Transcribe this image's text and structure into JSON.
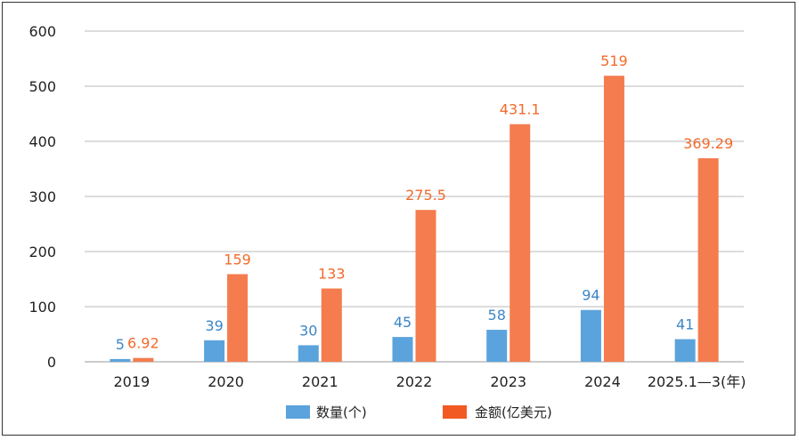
{
  "chart_data": {
    "type": "bar",
    "categories": [
      "2019",
      "2020",
      "2021",
      "2022",
      "2023",
      "2024",
      "2025.1—3(年)"
    ],
    "series": [
      {
        "name": "数量(个)",
        "values": [
          5,
          39,
          30,
          45,
          58,
          94,
          41
        ],
        "labels": [
          "5",
          "39",
          "30",
          "45",
          "58",
          "94",
          "41"
        ],
        "color": "#5ba3dc",
        "legend_color": "#5ba3dc",
        "label_color": "#3d86c6"
      },
      {
        "name": "金额(亿美元)",
        "values": [
          6.92,
          159,
          133,
          275.5,
          431.1,
          519,
          369.29
        ],
        "labels": [
          "6.92",
          "159",
          "133",
          "275.5",
          "431.1",
          "519",
          "369.29"
        ],
        "color": "#f47c4e",
        "legend_color": "#f25a23",
        "label_color": "#f26a2b"
      }
    ],
    "yticks": [
      "0",
      "100",
      "200",
      "300",
      "400",
      "500",
      "600"
    ],
    "ylim": [
      0,
      600
    ],
    "grid": true,
    "legend_position": "bottom"
  }
}
